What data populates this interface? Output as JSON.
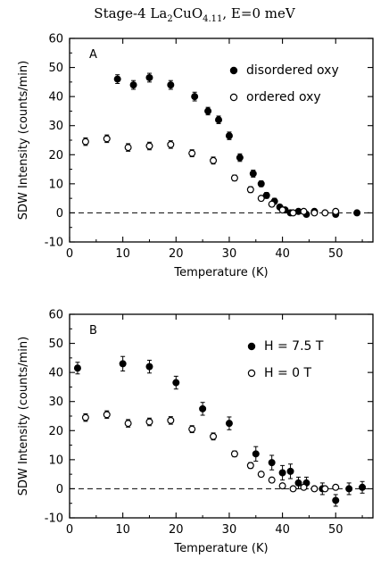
{
  "figure": {
    "title_prefix": "Stage-4 La",
    "title_sub1": "2",
    "title_mid": "CuO",
    "title_sub2": "4.11",
    "title_suffix": ", E=0 meV"
  },
  "chart_data": [
    {
      "type": "scatter",
      "panel_label": "A",
      "xlabel": "Temperature (K)",
      "ylabel": "SDW Intensity (counts/min)",
      "xlim": [
        0,
        57
      ],
      "ylim": [
        -10,
        60
      ],
      "xticks": [
        0,
        10,
        20,
        30,
        40,
        50
      ],
      "yticks": [
        -10,
        0,
        10,
        20,
        30,
        40,
        50,
        60
      ],
      "zero_line": true,
      "legend_position": "top-right",
      "series": [
        {
          "name": "disordered oxy",
          "marker": "filled-circle",
          "color": "#000000",
          "x": [
            9,
            12,
            15,
            19,
            23.5,
            26,
            28,
            30,
            32,
            34.5,
            36,
            37,
            38.5,
            39.5,
            40.5,
            41.5,
            43,
            44.5,
            46,
            50,
            54
          ],
          "y": [
            46,
            44,
            46.5,
            44,
            40,
            35,
            32,
            26.5,
            19,
            13.5,
            10,
            6,
            4,
            2,
            1,
            0,
            0.5,
            -0.5,
            0.5,
            -0.5,
            0
          ],
          "err": [
            1.5,
            1.5,
            1.5,
            1.5,
            1.5,
            1.3,
            1.3,
            1.3,
            1.3,
            1.2,
            1,
            1,
            1,
            0.8,
            0.8,
            0.8,
            0.8,
            0.8,
            0.8,
            0.8,
            0.8
          ]
        },
        {
          "name": "ordered oxy",
          "marker": "open-circle",
          "color": "#000000",
          "x": [
            3,
            7,
            11,
            15,
            19,
            23,
            27,
            31,
            34,
            36,
            38,
            40,
            42,
            44,
            46,
            48,
            50
          ],
          "y": [
            24.5,
            25.5,
            22.5,
            23,
            23.5,
            20.5,
            18,
            12,
            8,
            5,
            3,
            1,
            0,
            0.5,
            0,
            0,
            0.5
          ],
          "err": [
            1.3,
            1.3,
            1.3,
            1.3,
            1.3,
            1.2,
            1.2,
            1,
            1,
            0.8,
            0.8,
            0.8,
            0.6,
            0.6,
            0.6,
            0.6,
            0.6
          ]
        }
      ]
    },
    {
      "type": "scatter",
      "panel_label": "B",
      "xlabel": "Temperature (K)",
      "ylabel": "SDW Intensity (counts/min)",
      "xlim": [
        0,
        57
      ],
      "ylim": [
        -10,
        60
      ],
      "xticks": [
        0,
        10,
        20,
        30,
        40,
        50
      ],
      "yticks": [
        -10,
        0,
        10,
        20,
        30,
        40,
        50,
        60
      ],
      "zero_line": true,
      "legend_position": "top-right",
      "series": [
        {
          "name": "H = 7.5 T",
          "marker": "filled-circle",
          "color": "#000000",
          "x": [
            1.5,
            10,
            15,
            20,
            25,
            30,
            35,
            38,
            40,
            41.5,
            43,
            44.5,
            47.5,
            50,
            52.5,
            55
          ],
          "y": [
            41.5,
            43,
            42,
            36.5,
            27.5,
            22.5,
            12,
            9,
            5.5,
            6,
            2,
            2,
            0,
            -4,
            0,
            0.5
          ],
          "err": [
            2,
            2.5,
            2.2,
            2.2,
            2.2,
            2.2,
            2.5,
            2.5,
            2.5,
            2.5,
            2,
            2,
            2,
            2,
            2,
            2
          ]
        },
        {
          "name": "H = 0 T",
          "marker": "open-circle",
          "color": "#000000",
          "x": [
            3,
            7,
            11,
            15,
            19,
            23,
            27,
            31,
            34,
            36,
            38,
            40,
            42,
            44,
            46,
            48,
            50
          ],
          "y": [
            24.5,
            25.5,
            22.5,
            23,
            23.5,
            20.5,
            18,
            12,
            8,
            5,
            3,
            1,
            0,
            0.5,
            0,
            0,
            0.5
          ],
          "err": [
            1.3,
            1.3,
            1.3,
            1.3,
            1.3,
            1.2,
            1.2,
            1,
            1,
            0.8,
            0.8,
            0.8,
            0.6,
            0.6,
            0.6,
            0.6,
            0.6
          ]
        }
      ]
    }
  ]
}
